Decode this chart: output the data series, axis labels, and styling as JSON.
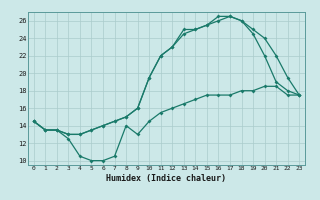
{
  "title": "",
  "xlabel": "Humidex (Indice chaleur)",
  "ylabel": "",
  "bg_color": "#cce8e8",
  "grid_color": "#aacccc",
  "line_color": "#1a7a6a",
  "xlim": [
    -0.5,
    23.5
  ],
  "ylim": [
    9.5,
    27.0
  ],
  "xticks": [
    0,
    1,
    2,
    3,
    4,
    5,
    6,
    7,
    8,
    9,
    10,
    11,
    12,
    13,
    14,
    15,
    16,
    17,
    18,
    19,
    20,
    21,
    22,
    23
  ],
  "yticks": [
    10,
    12,
    14,
    16,
    18,
    20,
    22,
    24,
    26
  ],
  "line1_x": [
    0,
    1,
    2,
    3,
    4,
    5,
    6,
    7,
    8,
    9,
    10,
    11,
    12,
    13,
    14,
    15,
    16,
    17,
    18,
    19,
    20,
    21,
    22,
    23
  ],
  "line1_y": [
    14.5,
    13.5,
    13.5,
    12.5,
    10.5,
    10.0,
    10.0,
    10.5,
    14.0,
    13.0,
    14.5,
    15.5,
    16.0,
    16.5,
    17.0,
    17.5,
    17.5,
    17.5,
    18.0,
    18.0,
    18.5,
    18.5,
    17.5,
    17.5
  ],
  "line2_x": [
    0,
    1,
    2,
    3,
    4,
    5,
    6,
    7,
    8,
    9,
    10,
    11,
    12,
    13,
    14,
    15,
    16,
    17,
    18,
    19,
    20,
    21,
    22,
    23
  ],
  "line2_y": [
    14.5,
    13.5,
    13.5,
    13.0,
    13.0,
    13.5,
    14.0,
    14.5,
    15.0,
    16.0,
    19.5,
    22.0,
    23.0,
    25.0,
    25.0,
    25.5,
    26.5,
    26.5,
    26.0,
    24.5,
    22.0,
    19.0,
    18.0,
    17.5
  ],
  "line3_x": [
    0,
    1,
    2,
    3,
    4,
    5,
    6,
    7,
    8,
    9,
    10,
    11,
    12,
    13,
    14,
    15,
    16,
    17,
    18,
    19,
    20,
    21,
    22,
    23
  ],
  "line3_y": [
    14.5,
    13.5,
    13.5,
    13.0,
    13.0,
    13.5,
    14.0,
    14.5,
    15.0,
    16.0,
    19.5,
    22.0,
    23.0,
    24.5,
    25.0,
    25.5,
    26.0,
    26.5,
    26.0,
    25.0,
    24.0,
    22.0,
    19.5,
    17.5
  ]
}
